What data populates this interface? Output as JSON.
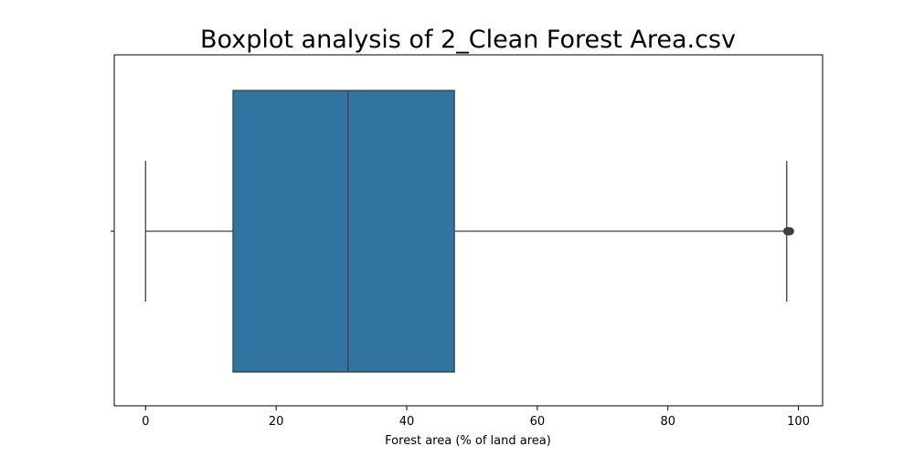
{
  "chart_data": {
    "type": "boxplot",
    "title": "Boxplot analysis of 2_Clean Forest Area.csv",
    "xlabel": "Forest area (% of land area)",
    "ylabel": "",
    "xlim": [
      -4.8,
      103.7
    ],
    "xticks": [
      0,
      20,
      40,
      60,
      80,
      100
    ],
    "tick_labels": [
      "0",
      "20",
      "40",
      "60",
      "80",
      "100"
    ],
    "grid": false,
    "box": {
      "min": 0.0,
      "q1": 13.4,
      "median": 31.0,
      "q3": 47.3,
      "max": 98.2,
      "outliers": [
        98.3,
        98.5,
        98.7
      ]
    },
    "colors": {
      "box_fill": "#3274a1",
      "line": "#3f3f3f",
      "axis": "#000000"
    }
  }
}
